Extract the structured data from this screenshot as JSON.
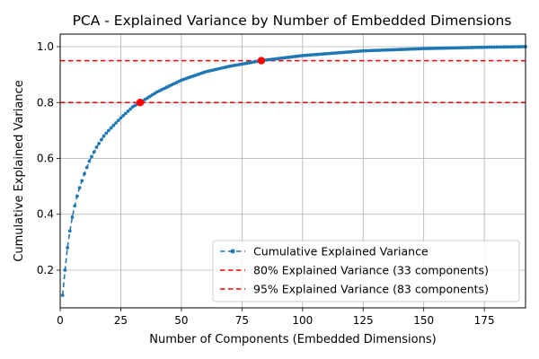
{
  "chart_data": {
    "type": "line",
    "title": "PCA - Explained Variance by Number of Embedded Dimensions",
    "xlabel": "Number of Components (Embedded Dimensions)",
    "ylabel": "Cumulative Explained Variance",
    "xlim": [
      0,
      192
    ],
    "ylim": [
      0.065,
      1.045
    ],
    "xticks": [
      0,
      25,
      50,
      75,
      100,
      125,
      150,
      175
    ],
    "yticks": [
      0.2,
      0.4,
      0.6,
      0.8,
      1.0
    ],
    "xtick_labels": [
      "0",
      "25",
      "50",
      "75",
      "100",
      "125",
      "150",
      "175"
    ],
    "ytick_labels": [
      "0.2",
      "0.4",
      "0.6",
      "0.8",
      "1.0"
    ],
    "grid": true,
    "legend_position": "bottom-right",
    "n_components": 192,
    "curve_anchor_points": {
      "x": [
        1,
        2,
        3,
        4,
        5,
        6,
        7,
        8,
        9,
        10,
        12,
        15,
        18,
        20,
        25,
        30,
        33,
        40,
        50,
        60,
        70,
        83,
        100,
        125,
        150,
        175,
        192
      ],
      "y": [
        0.11,
        0.2,
        0.28,
        0.34,
        0.39,
        0.43,
        0.465,
        0.495,
        0.52,
        0.545,
        0.59,
        0.64,
        0.68,
        0.7,
        0.745,
        0.785,
        0.8,
        0.838,
        0.88,
        0.91,
        0.93,
        0.95,
        0.968,
        0.985,
        0.993,
        0.998,
        1.0
      ]
    },
    "series": [
      {
        "name": "Cumulative Explained Variance",
        "style": "dashed line with circle markers",
        "color": "#1f77b4"
      }
    ],
    "thresholds": [
      {
        "label": "80% Explained Variance (33 components)",
        "y": 0.8,
        "component": 33,
        "color": "#ff0000"
      },
      {
        "label": "95% Explained Variance (83 components)",
        "y": 0.95,
        "component": 83,
        "color": "#ff0000"
      }
    ],
    "marker_color": "#ff0000"
  }
}
